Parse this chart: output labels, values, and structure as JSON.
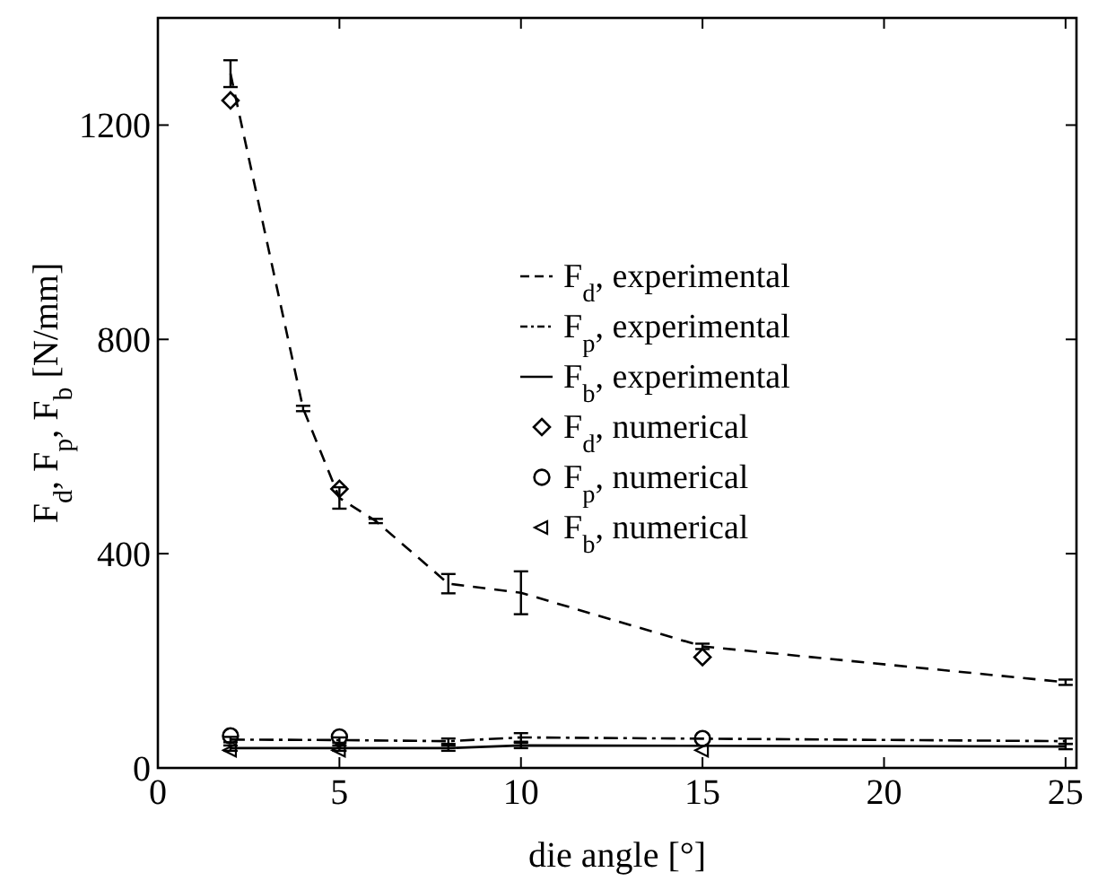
{
  "chart_data": {
    "type": "line",
    "xlabel": "die angle [°]",
    "ylabel": "F$_{d}$, F$_{p}$, F$_{b}$ [N/mm]",
    "xlim": [
      0,
      25.3
    ],
    "xticks": [
      0,
      5,
      10,
      15,
      20,
      25
    ],
    "ylim": [
      0,
      1400
    ],
    "yticks": [
      0,
      400,
      800,
      1200
    ],
    "grid": false,
    "legend": "right",
    "series": [
      {
        "name": "F$_{d}$, experimental",
        "color": "#000000",
        "line_style": "dashed",
        "marker": "none",
        "x": [
          2,
          4,
          5,
          6,
          8,
          10,
          15,
          25
        ],
        "values": [
          1296,
          671,
          504,
          461,
          344,
          327,
          227,
          160
        ],
        "errors": [
          25,
          5,
          20,
          4,
          18,
          40,
          5,
          5
        ]
      },
      {
        "name": "F$_{p}$, experimental",
        "color": "#000000",
        "line_style": "dashdot",
        "marker": "none",
        "x": [
          2,
          5,
          8,
          10,
          25
        ],
        "values": [
          53,
          52,
          50,
          57,
          50
        ],
        "errors": [
          5,
          5,
          5,
          8,
          5
        ]
      },
      {
        "name": "F$_{b}$, experimental",
        "color": "#000000",
        "line_style": "solid",
        "marker": "none",
        "x": [
          2,
          5,
          8,
          10,
          25
        ],
        "values": [
          37,
          37,
          37,
          42,
          40
        ],
        "errors": [
          5,
          5,
          5,
          5,
          5
        ]
      },
      {
        "name": "F$_{d}$, numerical",
        "type": "scatter",
        "color": "#000000",
        "marker": "diamond",
        "x": [
          2,
          5,
          15
        ],
        "values": [
          1246,
          521,
          207
        ]
      },
      {
        "name": "F$_{p}$, numerical",
        "type": "scatter",
        "color": "#000000",
        "marker": "circle",
        "x": [
          2,
          5,
          15
        ],
        "values": [
          60,
          58,
          55
        ]
      },
      {
        "name": "F$_{b}$, numerical",
        "type": "scatter",
        "color": "#000000",
        "marker": "triangle",
        "x": [
          2,
          5,
          15
        ],
        "values": [
          33,
          33,
          33
        ]
      }
    ]
  }
}
